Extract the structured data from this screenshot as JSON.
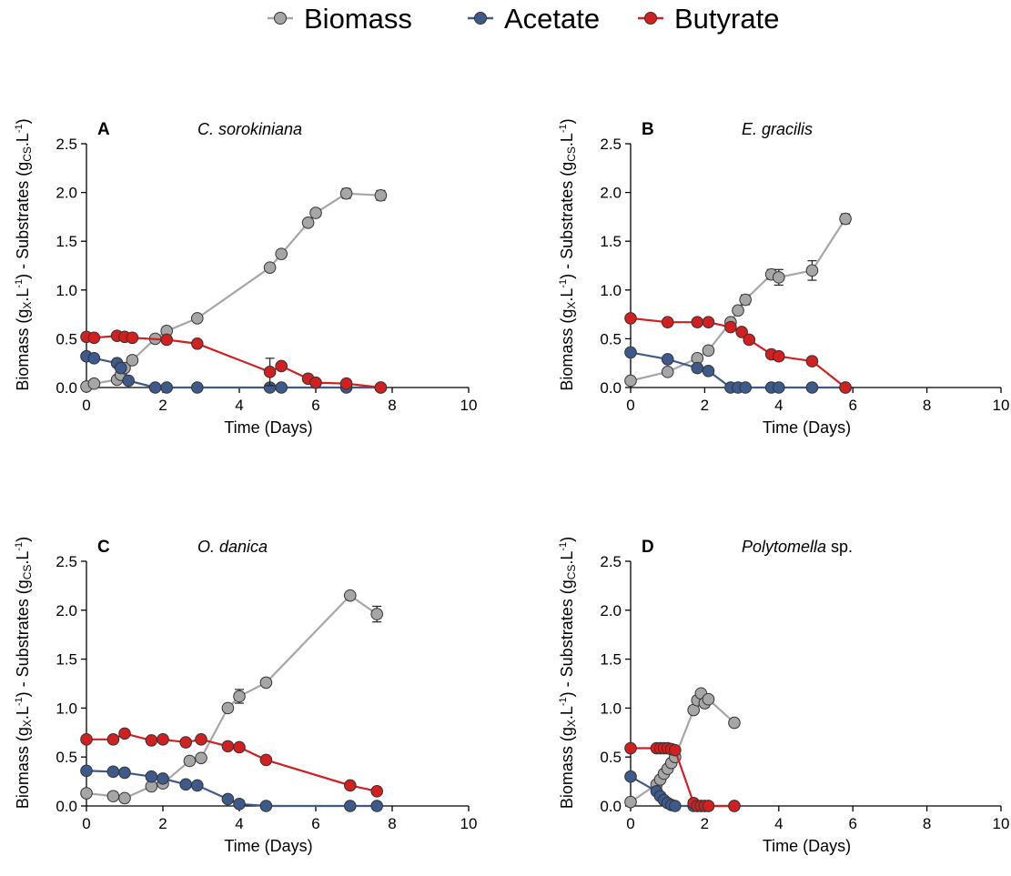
{
  "legend": {
    "position": "top-center",
    "items": [
      {
        "label": "Biomass",
        "color": "#a6a6a6"
      },
      {
        "label": "Acetate",
        "color": "#3d5a8a"
      },
      {
        "label": "Butyrate",
        "color": "#d21f1f"
      }
    ]
  },
  "colors": {
    "biomass": "#a6a6a6",
    "acetate": "#3d5a8a",
    "butyrate": "#d21f1f",
    "marker_edge": "#333333"
  },
  "chart_data": [
    {
      "type": "line",
      "panel_letter": "A",
      "species": "C. sorokiniana",
      "species_suffix": "",
      "xlabel": "Time (Days)",
      "ylabel": "Biomass (gX.L-1) - Substrates (gCS.L-1)",
      "xlim": [
        0,
        10
      ],
      "ylim": [
        0,
        2.5
      ],
      "xticks": [
        "0",
        "2",
        "4",
        "6",
        "8",
        "10"
      ],
      "yticks": [
        "0.0",
        "0.5",
        "1.0",
        "1.5",
        "2.0",
        "2.5"
      ],
      "grid": false,
      "series": [
        {
          "name": "Biomass",
          "x": [
            0,
            0.2,
            0.8,
            0.9,
            1.0,
            1.2,
            1.8,
            2.1,
            2.9,
            4.8,
            5.1,
            5.8,
            6.0,
            6.8,
            7.7
          ],
          "y": [
            0.01,
            0.04,
            0.08,
            0.13,
            0.2,
            0.28,
            0.5,
            0.58,
            0.71,
            1.23,
            1.37,
            1.69,
            1.79,
            1.99,
            1.97
          ],
          "err": [
            0,
            0,
            0,
            0,
            0,
            0,
            0,
            0,
            0,
            0,
            0,
            0,
            0.04,
            0.05,
            0.05
          ]
        },
        {
          "name": "Acetate",
          "x": [
            0,
            0.2,
            0.8,
            0.9,
            1.1,
            1.8,
            2.1,
            2.9,
            4.8,
            5.1,
            6.8,
            7.7
          ],
          "y": [
            0.32,
            0.3,
            0.25,
            0.2,
            0.07,
            0,
            0,
            0,
            0,
            0,
            0,
            0
          ]
        },
        {
          "name": "Butyrate",
          "x": [
            0,
            0.2,
            0.8,
            1.0,
            1.2,
            2.1,
            2.9,
            4.8,
            5.1,
            5.8,
            6.0,
            6.8,
            7.7
          ],
          "y": [
            0.52,
            0.51,
            0.53,
            0.52,
            0.51,
            0.49,
            0.45,
            0.16,
            0.22,
            0.09,
            0.05,
            0.04,
            0
          ],
          "err": [
            0.04,
            0,
            0,
            0,
            0,
            0,
            0,
            0.14,
            0,
            0,
            0,
            0.04,
            0
          ]
        }
      ]
    },
    {
      "type": "line",
      "panel_letter": "B",
      "species": "E. gracilis",
      "species_suffix": "",
      "xlabel": "Time (Days)",
      "ylabel": "Biomass (gX.L-1) - Substrates (gCS.L-1)",
      "xlim": [
        0,
        10
      ],
      "ylim": [
        0,
        2.5
      ],
      "xticks": [
        "0",
        "2",
        "4",
        "6",
        "8",
        "10"
      ],
      "yticks": [
        "0.0",
        "0.5",
        "1.0",
        "1.5",
        "2.0",
        "2.5"
      ],
      "grid": false,
      "series": [
        {
          "name": "Biomass",
          "x": [
            0,
            1.0,
            1.8,
            2.1,
            2.7,
            2.9,
            3.1,
            3.8,
            4.0,
            4.9,
            5.8
          ],
          "y": [
            0.07,
            0.16,
            0.3,
            0.38,
            0.67,
            0.79,
            0.9,
            1.16,
            1.13,
            1.2,
            1.73
          ],
          "err": [
            0,
            0,
            0,
            0,
            0,
            0,
            0.05,
            0.05,
            0.08,
            0.1,
            0.05
          ]
        },
        {
          "name": "Acetate",
          "x": [
            0,
            1.0,
            1.8,
            2.1,
            2.7,
            2.9,
            3.1,
            3.8,
            4.0,
            4.9,
            5.8
          ],
          "y": [
            0.36,
            0.29,
            0.2,
            0.17,
            0,
            0,
            0,
            0,
            0,
            0,
            0
          ]
        },
        {
          "name": "Butyrate",
          "x": [
            0,
            1.0,
            1.8,
            2.1,
            2.7,
            3.0,
            3.2,
            3.8,
            4.0,
            4.9,
            5.8
          ],
          "y": [
            0.71,
            0.67,
            0.67,
            0.67,
            0.62,
            0.57,
            0.49,
            0.34,
            0.32,
            0.27,
            0
          ]
        }
      ]
    },
    {
      "type": "line",
      "panel_letter": "C",
      "species": "O. danica",
      "species_suffix": "",
      "xlabel": "Time (Days)",
      "ylabel": "Biomass (gX.L-1) - Substrates (gCS.L-1)",
      "xlim": [
        0,
        10
      ],
      "ylim": [
        0,
        2.5
      ],
      "xticks": [
        "0",
        "2",
        "4",
        "6",
        "8",
        "10"
      ],
      "yticks": [
        "0.0",
        "0.5",
        "1.0",
        "1.5",
        "2.0",
        "2.5"
      ],
      "grid": false,
      "series": [
        {
          "name": "Biomass",
          "x": [
            0,
            0.7,
            1.0,
            1.7,
            2.0,
            2.7,
            3.0,
            3.7,
            4.0,
            4.7,
            6.9,
            7.6
          ],
          "y": [
            0.13,
            0.1,
            0.08,
            0.2,
            0.23,
            0.46,
            0.49,
            1.0,
            1.12,
            1.26,
            2.15,
            1.96
          ],
          "err": [
            0,
            0,
            0,
            0,
            0,
            0,
            0,
            0,
            0.07,
            0,
            0,
            0.08
          ]
        },
        {
          "name": "Acetate",
          "x": [
            0,
            0.7,
            1.0,
            1.7,
            2.0,
            2.6,
            2.9,
            3.7,
            4.0,
            4.7,
            6.9,
            7.6
          ],
          "y": [
            0.36,
            0.35,
            0.34,
            0.3,
            0.28,
            0.22,
            0.21,
            0.07,
            0.02,
            0,
            0,
            0
          ]
        },
        {
          "name": "Butyrate",
          "x": [
            0,
            0.7,
            1.0,
            1.7,
            2.0,
            2.6,
            3.0,
            3.7,
            4.0,
            4.7,
            6.9,
            7.6
          ],
          "y": [
            0.68,
            0.68,
            0.74,
            0.67,
            0.68,
            0.65,
            0.68,
            0.61,
            0.6,
            0.47,
            0.21,
            0.15
          ]
        }
      ]
    },
    {
      "type": "line",
      "panel_letter": "D",
      "species": "Polytomella",
      "species_suffix": " sp.",
      "xlabel": "Time (Days)",
      "ylabel": "Biomass (gX.L-1) - Substrates (gCS.L-1)",
      "xlim": [
        0,
        10
      ],
      "ylim": [
        0,
        2.5
      ],
      "xticks": [
        "0",
        "2",
        "4",
        "6",
        "8",
        "10"
      ],
      "yticks": [
        "0.0",
        "0.5",
        "1.0",
        "1.5",
        "2.0",
        "2.5"
      ],
      "grid": false,
      "series": [
        {
          "name": "Biomass",
          "x": [
            0,
            0.7,
            0.8,
            0.9,
            1.0,
            1.1,
            1.2,
            1.7,
            1.8,
            1.9,
            2.0,
            2.1,
            2.8
          ],
          "y": [
            0.04,
            0.22,
            0.27,
            0.33,
            0.38,
            0.44,
            0.5,
            0.98,
            1.08,
            1.15,
            1.05,
            1.09,
            0.85
          ]
        },
        {
          "name": "Acetate",
          "x": [
            0,
            0.7,
            0.8,
            0.9,
            1.0,
            1.1,
            1.2,
            1.7,
            1.8,
            1.9,
            2.0,
            2.1,
            2.8
          ],
          "y": [
            0.3,
            0.15,
            0.1,
            0.06,
            0.03,
            0.01,
            0,
            0,
            0,
            0,
            0,
            0,
            0
          ]
        },
        {
          "name": "Butyrate",
          "x": [
            0,
            0.7,
            0.8,
            0.9,
            1.0,
            1.1,
            1.2,
            1.7,
            1.8,
            1.9,
            2.0,
            2.1,
            2.8
          ],
          "y": [
            0.59,
            0.59,
            0.59,
            0.59,
            0.59,
            0.58,
            0.57,
            0.03,
            0,
            0,
            0,
            0,
            0
          ]
        }
      ]
    }
  ]
}
